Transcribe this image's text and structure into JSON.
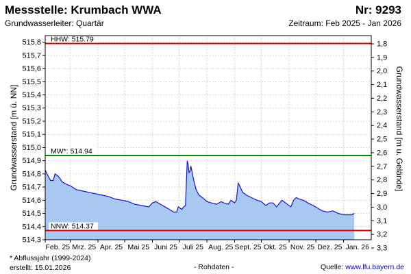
{
  "header": {
    "title": "Messstelle: Krumbach WWA",
    "number": "Nr: 9293",
    "aquifer": "Grundwasserleiter: Quartär",
    "period": "Zeitraum: Feb 2025 - Jan 2026"
  },
  "footer": {
    "note": "* Abflussjahr (1999-2024)",
    "created": "erstellt:  15.01.2026",
    "status": "- Rohdaten -",
    "source_label": "Quelle: ",
    "source_link": "www.lfu.bayern.de"
  },
  "colors": {
    "area_fill": "#a7c8f0",
    "line": "#1414d4",
    "hhw": "#e00000",
    "mw": "#008800",
    "nnw": "#e00000",
    "grid": "#cccccc"
  },
  "chart_data": {
    "type": "area",
    "ylabel": "Grundwasserstand [m ü. NN]",
    "y2label": "Grundwasserstand [m u. Gelände]",
    "ylim": [
      514.3,
      515.85
    ],
    "yticks": [
      "514,3",
      "514,4",
      "514,5",
      "514,6",
      "514,7",
      "514,8",
      "514,9",
      "515,0",
      "515,1",
      "515,2",
      "515,3",
      "515,4",
      "515,5",
      "515,6",
      "515,7",
      "515,8"
    ],
    "y2lim": [
      1.8,
      3.3
    ],
    "y2ticks": [
      "1,8",
      "1,9",
      "2,0",
      "2,1",
      "2,2",
      "2,3",
      "2,4",
      "2,5",
      "2,6",
      "2,7",
      "2,8",
      "2,9",
      "3,0",
      "3,1",
      "3,2",
      "3,3"
    ],
    "xlim": [
      "2025-02-01",
      "2026-02-01"
    ],
    "xticks": [
      "Feb. 25",
      "Mrz. 25",
      "Apr. 25",
      "Mai 25",
      "Juni 25",
      "Juli 25",
      "Aug. 25",
      "Sept. 25",
      "Okt. 25",
      "Nov. 25",
      "Dez. 25",
      "Jan. 26"
    ],
    "grid": true,
    "reference_lines": [
      {
        "label": "HHW: 515.79",
        "value": 515.79,
        "color": "#e00000"
      },
      {
        "label": "MW*: 514.94",
        "value": 514.94,
        "color": "#008800"
      },
      {
        "label": "NNW: 514.37",
        "value": 514.37,
        "color": "#e00000"
      }
    ],
    "series": [
      {
        "x": [
          "2025-02-01",
          "2025-02-03",
          "2025-02-07",
          "2025-02-10",
          "2025-02-12",
          "2025-02-16",
          "2025-02-20",
          "2025-02-25",
          "2025-03-01",
          "2025-03-08",
          "2025-03-15",
          "2025-03-22",
          "2025-03-29",
          "2025-04-05",
          "2025-04-12",
          "2025-04-20",
          "2025-04-28",
          "2025-05-05",
          "2025-05-12",
          "2025-05-20",
          "2025-05-28",
          "2025-06-01",
          "2025-06-05",
          "2025-06-10",
          "2025-06-15",
          "2025-06-20",
          "2025-06-25",
          "2025-06-28",
          "2025-06-30",
          "2025-07-02",
          "2025-07-04",
          "2025-07-06",
          "2025-07-08",
          "2025-07-10",
          "2025-07-11",
          "2025-07-12",
          "2025-07-13",
          "2025-07-14",
          "2025-07-15",
          "2025-07-17",
          "2025-07-18",
          "2025-07-20",
          "2025-07-23",
          "2025-07-27",
          "2025-08-01",
          "2025-08-06",
          "2025-08-12",
          "2025-08-17",
          "2025-08-20",
          "2025-08-25",
          "2025-08-28",
          "2025-09-01",
          "2025-09-03",
          "2025-09-05",
          "2025-09-06",
          "2025-09-08",
          "2025-09-10",
          "2025-09-14",
          "2025-09-20",
          "2025-09-26",
          "2025-10-01",
          "2025-10-06",
          "2025-10-10",
          "2025-10-14",
          "2025-10-18",
          "2025-10-24",
          "2025-10-30",
          "2025-11-03",
          "2025-11-06",
          "2025-11-09",
          "2025-11-12",
          "2025-11-17",
          "2025-11-22",
          "2025-11-28",
          "2025-12-03",
          "2025-12-08",
          "2025-12-14",
          "2025-12-20",
          "2025-12-26",
          "2026-01-01",
          "2026-01-06",
          "2026-01-10",
          "2026-01-13"
        ],
        "values": [
          514.83,
          514.8,
          514.75,
          514.75,
          514.8,
          514.78,
          514.74,
          514.72,
          514.71,
          514.68,
          514.67,
          514.66,
          514.65,
          514.64,
          514.63,
          514.61,
          514.6,
          514.59,
          514.57,
          514.56,
          514.55,
          514.58,
          514.59,
          514.57,
          514.55,
          514.53,
          514.51,
          514.51,
          514.55,
          514.54,
          514.53,
          514.55,
          514.56,
          514.9,
          514.87,
          514.81,
          514.82,
          514.86,
          514.83,
          514.76,
          514.73,
          514.68,
          514.64,
          514.62,
          514.59,
          514.58,
          514.57,
          514.59,
          514.58,
          514.57,
          514.6,
          514.58,
          514.6,
          514.73,
          514.72,
          514.69,
          514.66,
          514.64,
          514.62,
          514.6,
          514.59,
          514.56,
          514.58,
          514.58,
          514.55,
          514.6,
          514.57,
          514.55,
          514.6,
          514.62,
          514.61,
          514.6,
          514.58,
          514.56,
          514.54,
          514.52,
          514.51,
          514.52,
          514.5,
          514.49,
          514.49,
          514.49,
          514.5
        ]
      }
    ]
  }
}
